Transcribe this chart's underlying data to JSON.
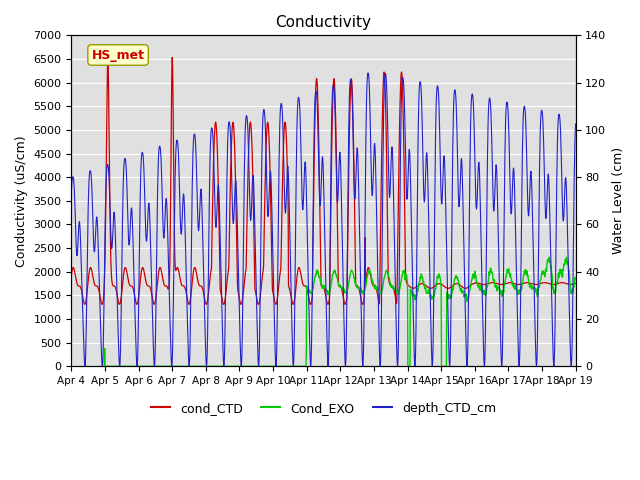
{
  "title": "Conductivity",
  "ylabel_left": "Conductivity (uS/cm)",
  "ylabel_right": "Water Level (cm)",
  "ylim_left": [
    0,
    7000
  ],
  "ylim_right": [
    0,
    140
  ],
  "yticks_left": [
    0,
    500,
    1000,
    1500,
    2000,
    2500,
    3000,
    3500,
    4000,
    4500,
    5000,
    5500,
    6000,
    6500,
    7000
  ],
  "yticks_right": [
    0,
    20,
    40,
    60,
    80,
    100,
    120,
    140
  ],
  "xtick_labels": [
    "Apr 4",
    "Apr 5",
    "Apr 6",
    "Apr 7",
    "Apr 8",
    "Apr 9",
    "Apr 10",
    "Apr 11",
    "Apr 12",
    "Apr 13",
    "Apr 14",
    "Apr 15",
    "Apr 16",
    "Apr 17",
    "Apr 18",
    "Apr 19"
  ],
  "legend_labels": [
    "cond_CTD",
    "Cond_EXO",
    "depth_CTD_cm"
  ],
  "legend_colors": [
    "#cc0000",
    "#00cc00",
    "#2222cc"
  ],
  "line_colors_cond_CTD": "#cc0000",
  "line_colors_Cond_EXO": "#00cc00",
  "line_colors_depth": "#2222cc",
  "annotation_text": "HS_met",
  "annotation_color": "#cc0000",
  "annotation_bg": "#ffffcc",
  "plot_bg": "#e0e0e0",
  "grid_color": "white"
}
